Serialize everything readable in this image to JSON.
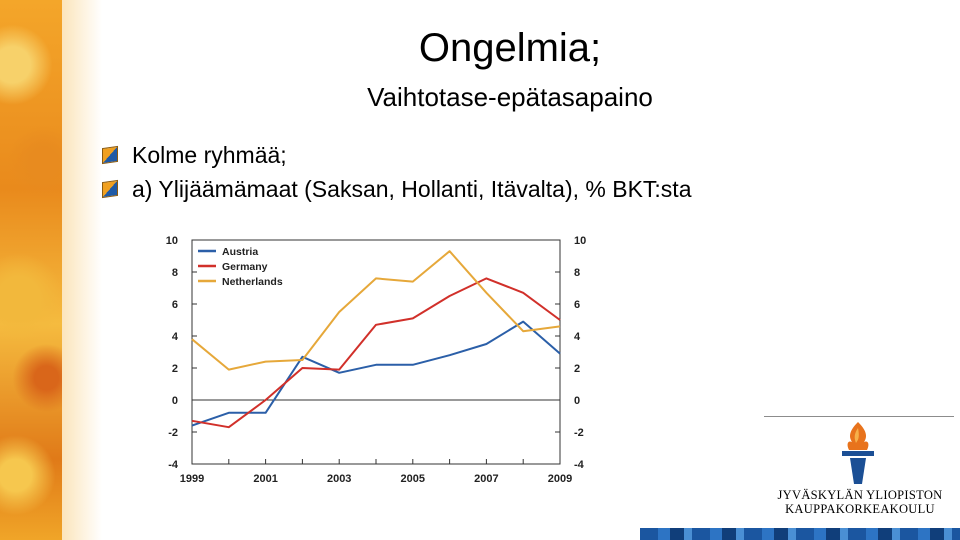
{
  "slide": {
    "title": "Ongelmia;",
    "subtitle": "Vaihtotase-epätasapaino",
    "bullets": [
      {
        "text": "Kolme ryhmää;"
      },
      {
        "text": "a) Ylijäämämaat (Saksan, Hollanti, Itävalta), % BKT:sta"
      }
    ]
  },
  "logo": {
    "line1": "JYVÄSKYLÄN YLIOPISTON",
    "line2": "KAUPPAKORKEAKOULU"
  },
  "colors": {
    "austria": "#2b5fa8",
    "germany": "#d1302a",
    "netherlands": "#e6a83a",
    "flame": "#e8731c",
    "logo_blue": "#1b4f95"
  },
  "chart_data": {
    "type": "line",
    "x": [
      1999,
      2000,
      2001,
      2002,
      2003,
      2004,
      2005,
      2006,
      2007,
      2008,
      2009
    ],
    "x_tick_labels": [
      "1999",
      "2001",
      "2003",
      "2005",
      "2007",
      "2009"
    ],
    "ylim": [
      -4,
      10
    ],
    "y_ticks": [
      -4,
      -2,
      0,
      2,
      4,
      6,
      8,
      10
    ],
    "secondary_y_axis": true,
    "grid": false,
    "legend_position": "top-left",
    "series": [
      {
        "name": "Austria",
        "color": "#2b5fa8",
        "values": [
          -1.6,
          -0.8,
          -0.8,
          2.7,
          1.7,
          2.2,
          2.2,
          2.8,
          3.5,
          4.9,
          2.9
        ]
      },
      {
        "name": "Germany",
        "color": "#d1302a",
        "values": [
          -1.3,
          -1.7,
          0.0,
          2.0,
          1.9,
          4.7,
          5.1,
          6.5,
          7.6,
          6.7,
          5.0
        ]
      },
      {
        "name": "Netherlands",
        "color": "#e6a83a",
        "values": [
          3.8,
          1.9,
          2.4,
          2.5,
          5.5,
          7.6,
          7.4,
          9.3,
          6.7,
          4.3,
          4.6
        ]
      }
    ]
  }
}
